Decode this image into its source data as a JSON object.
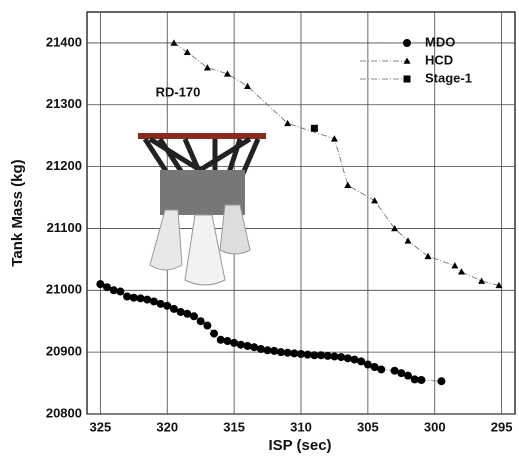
{
  "chart_data": {
    "type": "scatter",
    "xlabel": "ISP (sec)",
    "ylabel": "Tank Mass (kg)",
    "annotation": "RD-170",
    "xlim": [
      326,
      294
    ],
    "ylim": [
      20800,
      21450
    ],
    "xticks": [
      325,
      320,
      315,
      310,
      305,
      300,
      295
    ],
    "yticks": [
      20800,
      20900,
      21000,
      21100,
      21200,
      21300,
      21400
    ],
    "grid": true,
    "legend": "upper right",
    "series": [
      {
        "name": "MDO",
        "marker": "circle",
        "color": "#000000",
        "x": [
          325,
          324.5,
          324,
          323.5,
          323,
          322.5,
          322,
          321.5,
          321,
          320.5,
          320,
          319.5,
          319,
          318.5,
          318,
          317.5,
          317,
          316.5,
          316,
          315.5,
          315,
          314.5,
          314,
          313.5,
          313,
          312.5,
          312,
          311.5,
          311,
          310.5,
          310,
          309.5,
          309,
          308.5,
          308,
          307.5,
          307,
          306.5,
          306,
          305.5,
          305,
          304.5,
          304,
          303,
          302.5,
          302,
          301.5,
          301,
          299.5
        ],
        "values": [
          21010,
          21005,
          21000,
          20998,
          20990,
          20988,
          20987,
          20985,
          20982,
          20978,
          20975,
          20970,
          20965,
          20962,
          20958,
          20950,
          20943,
          20930,
          20920,
          20918,
          20915,
          20912,
          20910,
          20908,
          20905,
          20903,
          20902,
          20900,
          20899,
          20898,
          20897,
          20896,
          20895,
          20895,
          20894,
          20893,
          20892,
          20890,
          20888,
          20885,
          20880,
          20876,
          20872,
          20870,
          20866,
          20862,
          20856,
          20855,
          20853
        ]
      },
      {
        "name": "HCD",
        "marker": "triangle",
        "color": "#000000",
        "x": [
          319.5,
          318.5,
          317,
          315.5,
          314,
          311,
          307.5,
          306.5,
          304.5,
          303,
          302,
          300.5,
          298.5,
          298,
          296.5,
          295.2
        ],
        "values": [
          21400,
          21385,
          21360,
          21350,
          21330,
          21270,
          21245,
          21170,
          21145,
          21100,
          21080,
          21055,
          21040,
          21030,
          21015,
          21008
        ]
      },
      {
        "name": "Stage-1",
        "marker": "square",
        "color": "#000000",
        "x": [
          309
        ],
        "values": [
          21262
        ]
      }
    ]
  }
}
